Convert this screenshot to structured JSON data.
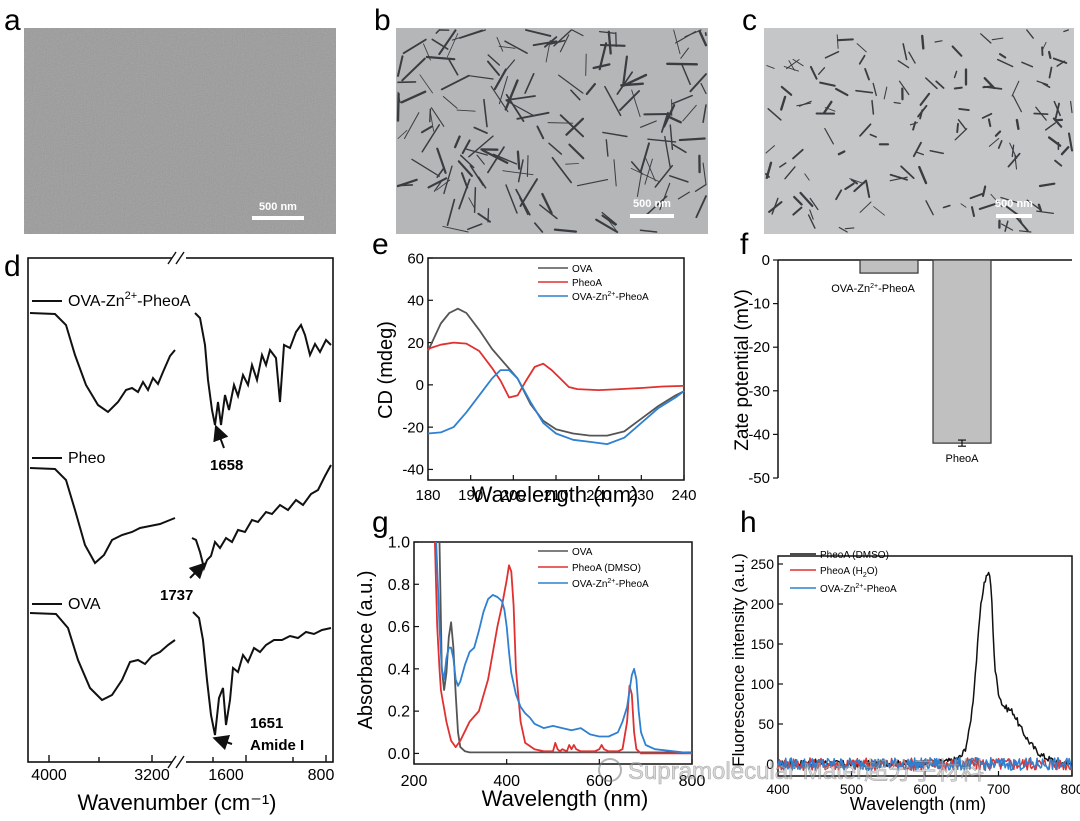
{
  "panels": {
    "a": {
      "letter": "a",
      "scale_bar": "500 nm"
    },
    "b": {
      "letter": "b",
      "scale_bar": "500 nm"
    },
    "c": {
      "letter": "c",
      "scale_bar": "500 nm"
    },
    "d": {
      "letter": "d"
    },
    "e": {
      "letter": "e"
    },
    "f": {
      "letter": "f"
    },
    "g": {
      "letter": "g"
    },
    "h": {
      "letter": "h"
    }
  },
  "watermark": "Supramolecular Mater超分子材料",
  "chart_data": [
    {
      "id": "d",
      "type": "line",
      "title": "",
      "xlabel": "Wavenumber (cm⁻¹)",
      "ylabel": "",
      "x_axis_reversed": true,
      "x_ticks": [
        "4000",
        "3200",
        "1600",
        "800"
      ],
      "axis_break": true,
      "series": [
        {
          "name": "OVA-Zn2+-PheoA",
          "label_main": "OVA-Zn",
          "label_sup": "2+",
          "label_tail": "-PheoA"
        },
        {
          "name": "Pheo"
        },
        {
          "name": "OVA"
        }
      ],
      "annotations": [
        {
          "series": "OVA-Zn2+-PheoA",
          "x": 1658,
          "text": "1658"
        },
        {
          "series": "Pheo",
          "x": 1737,
          "text": "1737"
        },
        {
          "series": "OVA",
          "x": 1651,
          "text": "1651",
          "note": "Amide I"
        }
      ]
    },
    {
      "id": "e",
      "type": "line",
      "xlabel": "Wavelength (nm)",
      "ylabel": "CD (mdeg)",
      "xlim": [
        180,
        240
      ],
      "ylim": [
        -45,
        60
      ],
      "x_ticks": [
        180,
        190,
        200,
        210,
        220,
        230,
        240
      ],
      "y_ticks": [
        60,
        40,
        20,
        0,
        -20,
        -40
      ],
      "legend": "top-right",
      "series": [
        {
          "name": "OVA",
          "color": "#555555",
          "x": [
            180,
            183,
            185,
            187,
            189,
            192,
            195,
            198,
            201,
            204,
            207,
            210,
            214,
            218,
            222,
            226,
            230,
            234,
            238,
            240
          ],
          "y": [
            16,
            29,
            34,
            36,
            34,
            26,
            17,
            10,
            3,
            -9,
            -17,
            -21,
            -23,
            -24,
            -24,
            -22,
            -16,
            -10,
            -5,
            -3
          ]
        },
        {
          "name": "PheoA",
          "color": "#e03030",
          "x": [
            180,
            183,
            186,
            189,
            192,
            195,
            197,
            199,
            201,
            203,
            205,
            207,
            209,
            211,
            213,
            215,
            220,
            225,
            230,
            235,
            240
          ],
          "y": [
            17,
            19,
            20,
            19.5,
            16,
            8,
            2,
            -6,
            -5,
            2,
            8.5,
            10,
            7,
            3,
            -1,
            -2,
            -2.5,
            -2,
            -1.5,
            -0.8,
            -0.5
          ]
        },
        {
          "name": "OVA-Zn2+-PheoA",
          "label_main": "OVA-Zn",
          "label_sup": "2+",
          "label_tail": "-PheoA",
          "color": "#2f80d0",
          "x": [
            180,
            183,
            186,
            189,
            192,
            195,
            197,
            199,
            201,
            204,
            207,
            210,
            214,
            218,
            222,
            226,
            230,
            234,
            238,
            240
          ],
          "y": [
            -23,
            -22.5,
            -20,
            -13,
            -5,
            3,
            7,
            7,
            3,
            -8,
            -18,
            -23,
            -26,
            -27,
            -28,
            -25,
            -18,
            -11,
            -6,
            -3
          ]
        }
      ]
    },
    {
      "id": "f",
      "type": "bar",
      "ylabel": "Zate potential (mV)",
      "ylim": [
        -50,
        0
      ],
      "y_ticks": [
        0,
        -10,
        -20,
        -30,
        -40,
        -50
      ],
      "categories": [
        "OVA-Zn2+-PheoA",
        "PheoA"
      ],
      "category_labels": [
        {
          "main": "OVA-Zn",
          "sup": "2+",
          "tail": "-PheoA"
        },
        {
          "main": "PheoA",
          "sup": "",
          "tail": ""
        }
      ],
      "values": [
        -3,
        -42
      ],
      "errors": [
        0,
        0.7
      ]
    },
    {
      "id": "g",
      "type": "line",
      "xlabel": "Wavelength (nm)",
      "ylabel": "Absorbance (a.u.)",
      "xlim": [
        200,
        800
      ],
      "ylim": [
        -0.05,
        1.0
      ],
      "x_ticks": [
        200,
        400,
        600,
        800
      ],
      "y_ticks": [
        0.0,
        0.2,
        0.4,
        0.6,
        0.8,
        1.0
      ],
      "legend": "top-right",
      "series": [
        {
          "name": "OVA",
          "color": "#555555",
          "x": [
            255,
            260,
            265,
            270,
            275,
            280,
            285,
            290,
            295,
            300,
            310,
            320,
            350,
            400,
            500,
            600,
            700,
            800
          ],
          "y": [
            1.0,
            0.4,
            0.3,
            0.38,
            0.55,
            0.62,
            0.5,
            0.28,
            0.1,
            0.03,
            0.01,
            0.005,
            0.005,
            0.005,
            0.005,
            0.005,
            0.005,
            0.005
          ]
        },
        {
          "name": "PheoA (DMSO)",
          "color": "#e03030",
          "x": [
            245,
            250,
            255,
            258,
            262,
            266,
            270,
            280,
            290,
            300,
            320,
            340,
            360,
            380,
            390,
            400,
            405,
            410,
            415,
            420,
            430,
            440,
            460,
            480,
            500,
            505,
            510,
            515,
            520,
            530,
            535,
            540,
            545,
            550,
            560,
            590,
            600,
            605,
            610,
            620,
            640,
            650,
            660,
            665,
            670,
            675,
            680,
            690,
            700,
            800
          ],
          "y": [
            1.0,
            0.6,
            0.4,
            0.3,
            0.25,
            0.2,
            0.15,
            0.06,
            0.03,
            0.06,
            0.15,
            0.2,
            0.35,
            0.6,
            0.7,
            0.82,
            0.89,
            0.86,
            0.7,
            0.4,
            0.15,
            0.05,
            0.02,
            0.01,
            0.01,
            0.05,
            0.02,
            0.01,
            0.02,
            0.01,
            0.04,
            0.02,
            0.04,
            0.02,
            0.01,
            0.01,
            0.02,
            0.04,
            0.02,
            0.01,
            0.01,
            0.02,
            0.15,
            0.32,
            0.28,
            0.1,
            0.02,
            0.0,
            0.0,
            0.0
          ]
        },
        {
          "name": "OVA-Zn2+-PheoA",
          "label_main": "OVA-Zn",
          "label_sup": "2+",
          "label_tail": "-PheoA",
          "color": "#2f80d0",
          "x": [
            248,
            255,
            260,
            265,
            270,
            275,
            280,
            285,
            290,
            295,
            300,
            310,
            320,
            330,
            340,
            350,
            360,
            370,
            380,
            390,
            395,
            400,
            405,
            410,
            420,
            430,
            440,
            450,
            460,
            480,
            500,
            520,
            540,
            560,
            580,
            600,
            620,
            640,
            650,
            660,
            670,
            675,
            680,
            685,
            690,
            700,
            720,
            800
          ],
          "y": [
            1.0,
            0.6,
            0.4,
            0.35,
            0.45,
            0.5,
            0.5,
            0.45,
            0.35,
            0.32,
            0.34,
            0.42,
            0.48,
            0.5,
            0.58,
            0.67,
            0.73,
            0.75,
            0.74,
            0.72,
            0.68,
            0.6,
            0.48,
            0.38,
            0.28,
            0.22,
            0.19,
            0.17,
            0.14,
            0.12,
            0.13,
            0.12,
            0.11,
            0.12,
            0.09,
            0.08,
            0.08,
            0.1,
            0.15,
            0.22,
            0.37,
            0.4,
            0.35,
            0.2,
            0.1,
            0.04,
            0.02,
            0.0
          ]
        }
      ]
    },
    {
      "id": "h",
      "type": "line",
      "xlabel": "Wavelength (nm)",
      "ylabel": "Fluorescence intensity (a.u.)",
      "xlim": [
        400,
        800
      ],
      "ylim": [
        -15,
        260
      ],
      "x_ticks": [
        400,
        500,
        600,
        700,
        800
      ],
      "y_ticks": [
        0,
        50,
        100,
        150,
        200,
        250
      ],
      "legend": "top-left",
      "series": [
        {
          "name": "PheoA (DMSO)",
          "color": "#111111",
          "x": [
            400,
            450,
            500,
            550,
            600,
            620,
            630,
            640,
            650,
            655,
            660,
            665,
            670,
            675,
            680,
            685,
            688,
            690,
            692,
            695,
            700,
            705,
            710,
            715,
            720,
            725,
            730,
            740,
            750,
            760,
            770,
            780,
            790,
            800
          ],
          "y": [
            0,
            2,
            0,
            1,
            0,
            2,
            3,
            5,
            10,
            20,
            40,
            75,
            130,
            190,
            225,
            238,
            235,
            220,
            180,
            120,
            90,
            75,
            70,
            68,
            65,
            55,
            45,
            30,
            18,
            10,
            6,
            3,
            1,
            0
          ]
        },
        {
          "name": "PheoA (H2O)",
          "label_main": "PheoA (H",
          "label_sub": "2",
          "label_tail": "O)",
          "color": "#e03030",
          "x": [
            400,
            450,
            500,
            550,
            600,
            650,
            700,
            750,
            800
          ],
          "y": [
            0,
            0,
            0,
            0,
            0,
            0,
            0,
            0,
            0
          ]
        },
        {
          "name": "OVA-Zn2+-PheoA",
          "label_main": "OVA-Zn",
          "label_sup": "2+",
          "label_tail": "-PheoA",
          "color": "#2f80d0",
          "x": [
            400,
            450,
            500,
            550,
            600,
            650,
            700,
            750,
            800
          ],
          "y": [
            0,
            0,
            0,
            0,
            0,
            0,
            0,
            0,
            0
          ]
        }
      ]
    }
  ]
}
